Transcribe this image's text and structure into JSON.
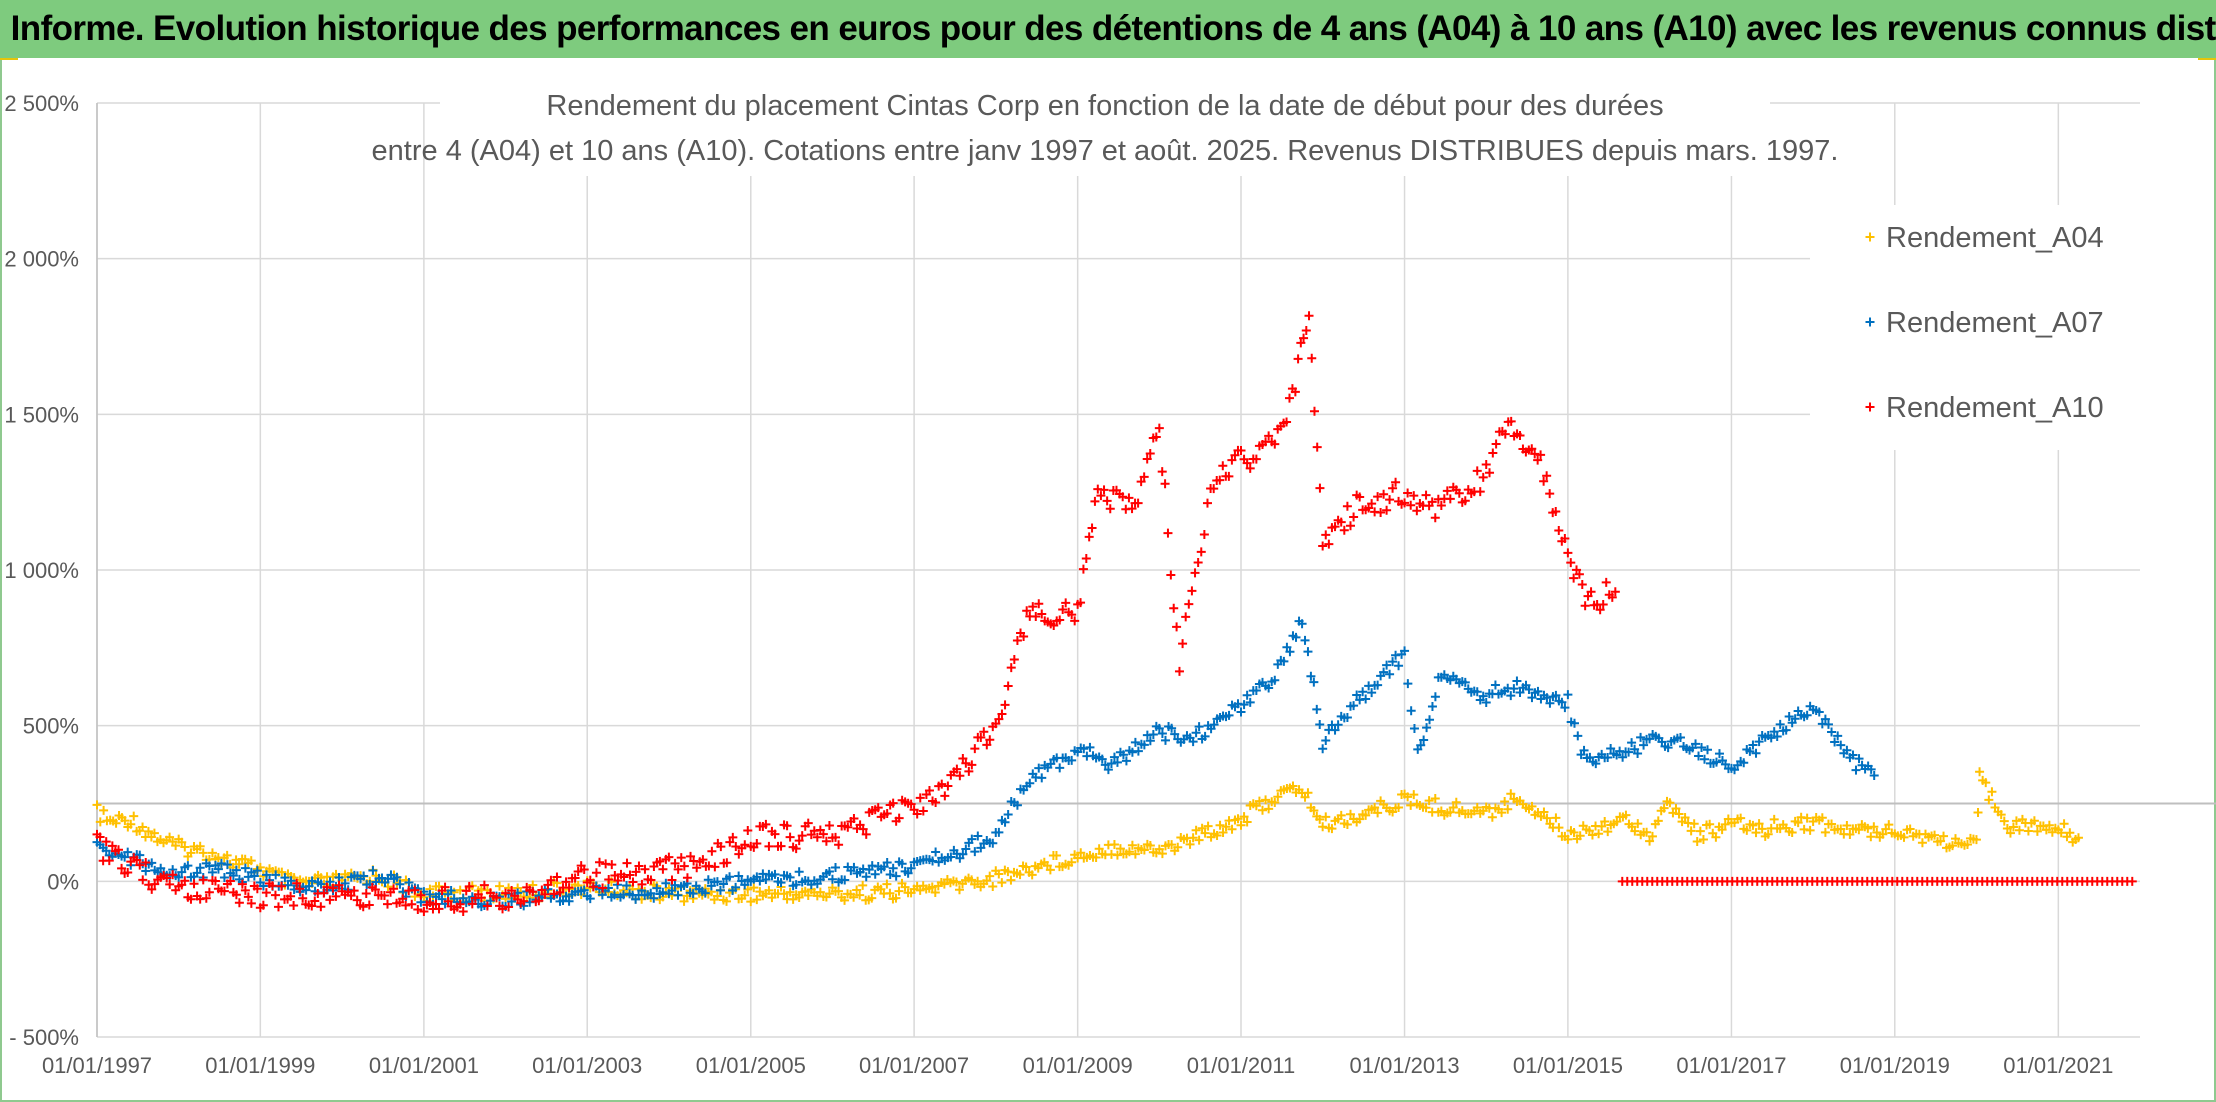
{
  "header": {
    "title": "ADAM Informe. Evolution historique des performances en euros pour des détentions de 4 ans (A04) à 10 ans (A10) avec les revenus connus distribués"
  },
  "chart_data": {
    "type": "scatter",
    "title_lines": [
      "Rendement du placement Cintas Corp en fonction de la date de début pour des durées",
      "entre 4 (A04) et 10 ans (A10). Cotations entre janv 1997 et août. 2025. Revenus DISTRIBUES depuis mars. 1997."
    ],
    "ylim": [
      -500,
      2500
    ],
    "y_ticks": [
      -500,
      0,
      500,
      1000,
      1500,
      2000,
      2500
    ],
    "y_tick_labels": [
      "- 500%",
      "0%",
      "500%",
      "1 000%",
      "1 500%",
      "2 000%",
      "2 500%"
    ],
    "x_range": [
      "1997-01-01",
      "2022-01-01"
    ],
    "x_ticks": [
      "1997-01-01",
      "1999-01-01",
      "2001-01-01",
      "2003-01-01",
      "2005-01-01",
      "2007-01-01",
      "2009-01-01",
      "2011-01-01",
      "2013-01-01",
      "2015-01-01",
      "2017-01-01",
      "2019-01-01",
      "2021-01-01"
    ],
    "x_tick_labels": [
      "01/01/1997",
      "01/01/1999",
      "01/01/2001",
      "01/01/2003",
      "01/01/2005",
      "01/01/2007",
      "01/01/2009",
      "01/01/2011",
      "01/01/2013",
      "01/01/2015",
      "01/01/2017",
      "01/01/2019",
      "01/01/2021"
    ],
    "reference_line": 250,
    "grid": true,
    "legend_position": "top-right",
    "series": [
      {
        "name": "Rendement_A04",
        "color": "#FFC000",
        "points": [
          [
            "1997-01-01",
            220
          ],
          [
            "1997-03-01",
            190
          ],
          [
            "1997-06-01",
            200
          ],
          [
            "1997-09-01",
            150
          ],
          [
            "1998-01-01",
            110
          ],
          [
            "1998-06-01",
            90
          ],
          [
            "1998-09-01",
            60
          ],
          [
            "1999-01-01",
            40
          ],
          [
            "1999-06-01",
            -10
          ],
          [
            "2000-01-01",
            0
          ],
          [
            "2000-06-01",
            20
          ],
          [
            "2001-01-01",
            -40
          ],
          [
            "2002-01-01",
            -40
          ],
          [
            "2003-01-01",
            -20
          ],
          [
            "2004-01-01",
            -40
          ],
          [
            "2005-01-01",
            -40
          ],
          [
            "2006-01-01",
            -40
          ],
          [
            "2007-01-01",
            -30
          ],
          [
            "2008-01-01",
            10
          ],
          [
            "2008-09-01",
            60
          ],
          [
            "2009-01-01",
            80
          ],
          [
            "2009-06-01",
            110
          ],
          [
            "2010-01-01",
            100
          ],
          [
            "2010-06-01",
            140
          ],
          [
            "2011-01-01",
            200
          ],
          [
            "2011-06-01",
            270
          ],
          [
            "2011-10-01",
            300
          ],
          [
            "2012-01-01",
            180
          ],
          [
            "2012-06-01",
            210
          ],
          [
            "2013-01-01",
            260
          ],
          [
            "2013-06-01",
            240
          ],
          [
            "2014-01-01",
            220
          ],
          [
            "2014-06-01",
            270
          ],
          [
            "2015-01-01",
            150
          ],
          [
            "2015-06-01",
            180
          ],
          [
            "2015-10-01",
            200
          ],
          [
            "2016-01-01",
            150
          ],
          [
            "2016-04-01",
            250
          ],
          [
            "2016-08-01",
            150
          ],
          [
            "2017-01-01",
            180
          ],
          [
            "2017-06-01",
            170
          ],
          [
            "2018-01-01",
            190
          ],
          [
            "2018-06-01",
            160
          ],
          [
            "2019-01-01",
            170
          ],
          [
            "2019-06-01",
            140
          ],
          [
            "2020-01-01",
            110
          ],
          [
            "2020-01-15",
            330
          ],
          [
            "2020-06-01",
            180
          ],
          [
            "2021-01-01",
            170
          ],
          [
            "2021-04-01",
            140
          ]
        ]
      },
      {
        "name": "Rendement_A07",
        "color": "#0070C0",
        "points": [
          [
            "1997-01-01",
            130
          ],
          [
            "1997-06-01",
            70
          ],
          [
            "1998-01-01",
            20
          ],
          [
            "1998-06-01",
            40
          ],
          [
            "1999-01-01",
            10
          ],
          [
            "1999-06-01",
            -20
          ],
          [
            "2000-01-01",
            -10
          ],
          [
            "2000-06-01",
            20
          ],
          [
            "2001-01-01",
            -50
          ],
          [
            "2002-01-01",
            -60
          ],
          [
            "2003-01-01",
            -40
          ],
          [
            "2004-01-01",
            -30
          ],
          [
            "2005-01-01",
            0
          ],
          [
            "2006-01-01",
            20
          ],
          [
            "2006-06-01",
            30
          ],
          [
            "2007-01-01",
            50
          ],
          [
            "2007-06-01",
            80
          ],
          [
            "2008-01-01",
            150
          ],
          [
            "2008-06-01",
            330
          ],
          [
            "2009-01-01",
            420
          ],
          [
            "2009-06-01",
            380
          ],
          [
            "2010-01-01",
            480
          ],
          [
            "2010-06-01",
            460
          ],
          [
            "2011-01-01",
            560
          ],
          [
            "2011-06-01",
            650
          ],
          [
            "2011-10-01",
            850
          ],
          [
            "2012-01-01",
            450
          ],
          [
            "2012-06-01",
            580
          ],
          [
            "2013-01-01",
            730
          ],
          [
            "2013-03-01",
            400
          ],
          [
            "2013-06-01",
            650
          ],
          [
            "2014-01-01",
            600
          ],
          [
            "2014-06-01",
            620
          ],
          [
            "2015-01-01",
            580
          ],
          [
            "2015-03-01",
            400
          ],
          [
            "2015-06-01",
            390
          ],
          [
            "2016-01-01",
            450
          ],
          [
            "2016-06-01",
            440
          ],
          [
            "2017-01-01",
            370
          ],
          [
            "2017-06-01",
            450
          ],
          [
            "2018-01-01",
            560
          ],
          [
            "2018-06-01",
            400
          ],
          [
            "2018-10-01",
            340
          ]
        ]
      },
      {
        "name": "Rendement_A10",
        "color": "#FF0000",
        "points": [
          [
            "1997-01-01",
            120
          ],
          [
            "1997-06-01",
            40
          ],
          [
            "1998-01-01",
            -20
          ],
          [
            "1998-06-01",
            -20
          ],
          [
            "1999-01-01",
            -50
          ],
          [
            "2000-01-01",
            -40
          ],
          [
            "2001-01-01",
            -60
          ],
          [
            "2002-01-01",
            -50
          ],
          [
            "2003-01-01",
            20
          ],
          [
            "2003-06-01",
            20
          ],
          [
            "2004-01-01",
            40
          ],
          [
            "2004-06-01",
            60
          ],
          [
            "2005-01-01",
            140
          ],
          [
            "2006-01-01",
            150
          ],
          [
            "2006-06-01",
            180
          ],
          [
            "2007-01-01",
            250
          ],
          [
            "2007-06-01",
            300
          ],
          [
            "2008-01-01",
            500
          ],
          [
            "2008-06-01",
            870
          ],
          [
            "2009-01-01",
            850
          ],
          [
            "2009-04-01",
            1250
          ],
          [
            "2009-09-01",
            1200
          ],
          [
            "2010-01-01",
            1450
          ],
          [
            "2010-04-01",
            700
          ],
          [
            "2010-09-01",
            1300
          ],
          [
            "2011-01-01",
            1350
          ],
          [
            "2011-06-01",
            1400
          ],
          [
            "2011-09-01",
            1600
          ],
          [
            "2011-11-01",
            1850
          ],
          [
            "2012-01-01",
            1100
          ],
          [
            "2012-06-01",
            1200
          ],
          [
            "2013-01-01",
            1250
          ],
          [
            "2013-06-01",
            1200
          ],
          [
            "2014-01-01",
            1300
          ],
          [
            "2014-03-01",
            1480
          ],
          [
            "2014-09-01",
            1350
          ],
          [
            "2015-01-01",
            1050
          ],
          [
            "2015-04-01",
            900
          ],
          [
            "2015-08-01",
            930
          ]
        ],
        "zero_points_range": [
          "2015-09-01",
          "2021-12-15"
        ]
      }
    ]
  }
}
